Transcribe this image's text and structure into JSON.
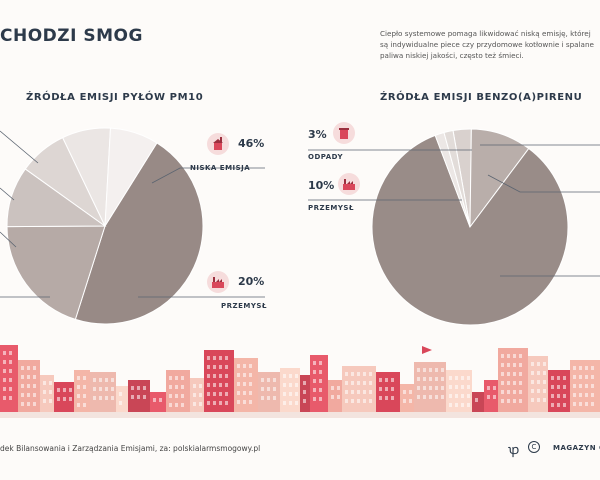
{
  "header": {
    "title": "CHODZI SMOG",
    "intro_lines": [
      "Ciepło systemowe pomaga likwidować niską emisję, której",
      "są indywidualne piece czy przydomowe kotłownie i spalane",
      "paliwa niskiej jakości, często też śmieci."
    ]
  },
  "chart_data": [
    {
      "type": "pie",
      "title": "ŹRÓDŁA EMISJI PYŁÓW PM10",
      "slices": [
        {
          "label": "NISKA EMISJA",
          "value": 46,
          "value_label": "46%",
          "color": "#988a86"
        },
        {
          "label": "PRZEMYSŁ",
          "value": 20,
          "value_label": "20%",
          "color": "#b6aaa6"
        },
        {
          "label": "",
          "value": 10,
          "value_label": "",
          "color": "#cbc2bf"
        },
        {
          "label": "",
          "value": 8,
          "value_label": "",
          "color": "#ddd6d3"
        },
        {
          "label": "",
          "value": 8,
          "value_label": "",
          "color": "#ebe6e4"
        },
        {
          "label": "",
          "value": 8,
          "value_label": "",
          "color": "#f4f0ef"
        }
      ]
    },
    {
      "type": "pie",
      "title": "ŹRÓDŁA EMISJI BENZO(A)PIRENU",
      "slices": [
        {
          "label": "ODPADY",
          "value": 3,
          "value_label": "3%",
          "color": "#d9d1ce"
        },
        {
          "label": "PRZEMYSŁ",
          "value": 10,
          "value_label": "10%",
          "color": "#b9aeaa"
        },
        {
          "label": "",
          "value": 84,
          "value_label": "",
          "color": "#998c88"
        },
        {
          "label": "",
          "value": 1.5,
          "value_label": "",
          "color": "#ece7e5"
        },
        {
          "label": "",
          "value": 1.5,
          "value_label": "",
          "color": "#e2dcd9"
        }
      ]
    }
  ],
  "icons": {
    "pm10_niska": "house-smoke-icon",
    "pm10_przemysl": "factory-icon",
    "bap_odpady": "trash-bin-icon",
    "bap_przemysl": "factory-icon"
  },
  "footer": {
    "source": "dek Bilansowania i Zarządzania Emisjami, za: polskialarmsmogowy.pl",
    "brand": "MAGAZYN CI",
    "copyright_symbol": "C"
  }
}
